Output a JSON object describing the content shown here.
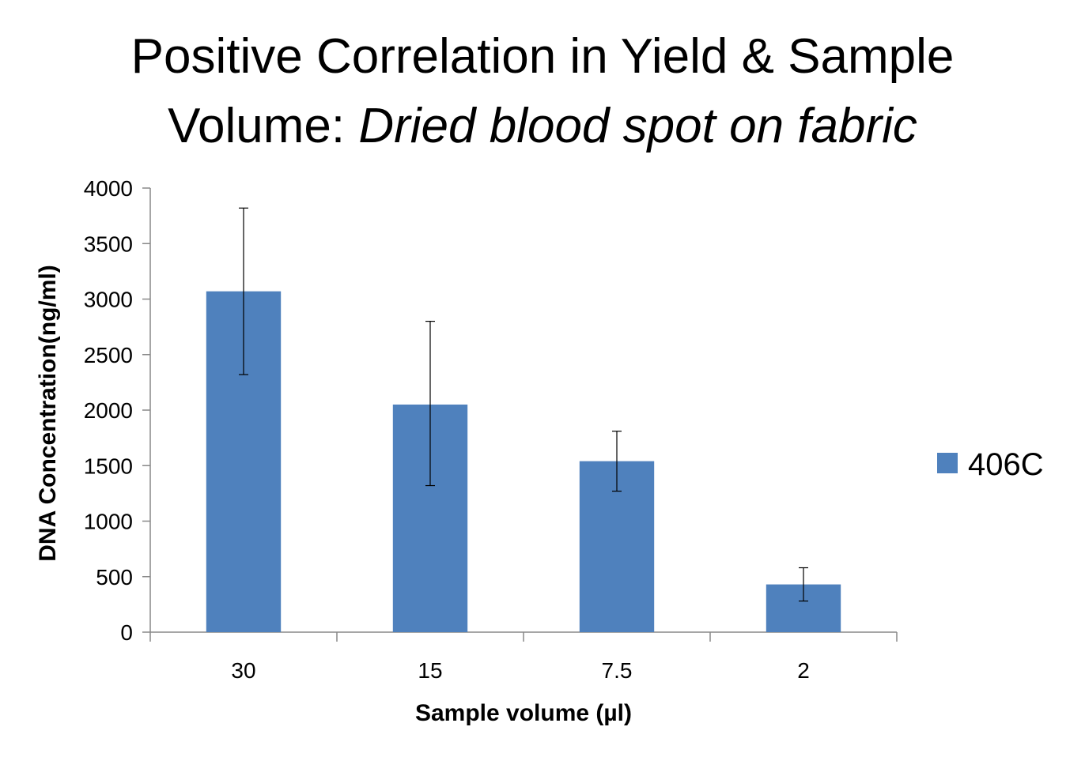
{
  "chart_data": {
    "type": "bar",
    "title_line1": "Positive Correlation in Yield & Sample",
    "title_line2_plain": "Volume: ",
    "title_line2_italic": "Dried blood spot on fabric",
    "xlabel": "Sample volume (µl)",
    "ylabel": "DNA Concentration(ng/ml)",
    "categories": [
      "30",
      "15",
      "7.5",
      "2"
    ],
    "series": [
      {
        "name": "406C",
        "values": [
          3070,
          2050,
          1540,
          430
        ],
        "error_low": [
          2320,
          1320,
          1270,
          280
        ],
        "error_high": [
          3820,
          2800,
          1810,
          580
        ],
        "color": "#4f81bd"
      }
    ],
    "ylim": [
      0,
      4000
    ],
    "yticks": [
      "0",
      "500",
      "1000",
      "1500",
      "2000",
      "2500",
      "3000",
      "3500",
      "4000"
    ],
    "grid": false,
    "legend_position": "right"
  }
}
